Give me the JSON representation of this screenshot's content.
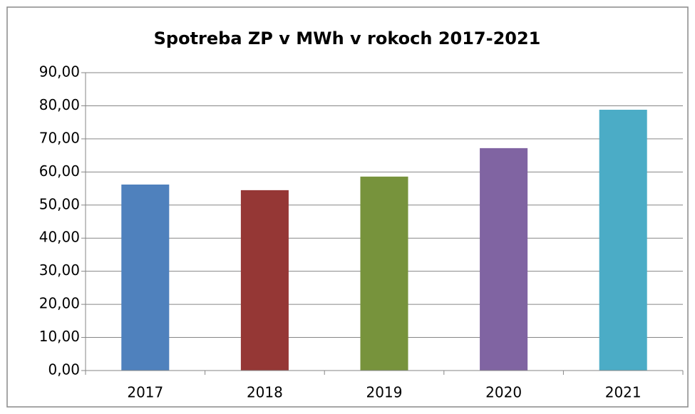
{
  "chart_data": {
    "type": "bar",
    "title": "Spotreba ZP v MWh v rokoch 2017-2021",
    "categories": [
      "2017",
      "2018",
      "2019",
      "2020",
      "2021"
    ],
    "values": [
      56.2,
      54.5,
      58.6,
      67.2,
      78.8
    ],
    "colors": [
      "#4f81bd",
      "#953735",
      "#77933c",
      "#8064a2",
      "#4bacc6"
    ],
    "ylim": [
      0,
      90
    ],
    "yticks": [
      {
        "value": 0,
        "label": "0,00"
      },
      {
        "value": 10,
        "label": "10,00"
      },
      {
        "value": 20,
        "label": "20,00"
      },
      {
        "value": 30,
        "label": "30,00"
      },
      {
        "value": 40,
        "label": "40,00"
      },
      {
        "value": 50,
        "label": "50,00"
      },
      {
        "value": 60,
        "label": "60,00"
      },
      {
        "value": 70,
        "label": "70,00"
      },
      {
        "value": 80,
        "label": "80,00"
      },
      {
        "value": 90,
        "label": "90,00"
      }
    ],
    "grid": true
  }
}
